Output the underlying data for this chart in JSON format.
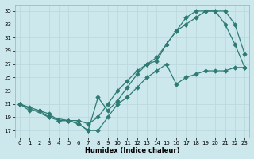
{
  "xlabel": "Humidex (Indice chaleur)",
  "background_color": "#cce8ec",
  "line_color": "#2e7b74",
  "grid_color": "#b8d8dc",
  "xlim": [
    -0.5,
    23.5
  ],
  "ylim": [
    16,
    36
  ],
  "xticks": [
    0,
    1,
    2,
    3,
    4,
    5,
    6,
    7,
    8,
    9,
    10,
    11,
    12,
    13,
    14,
    15,
    16,
    17,
    18,
    19,
    20,
    21,
    22,
    23
  ],
  "yticks": [
    17,
    19,
    21,
    23,
    25,
    27,
    29,
    31,
    33,
    35
  ],
  "series1_x": [
    0,
    1,
    2,
    3,
    4,
    5,
    6,
    7,
    8,
    9,
    10,
    11,
    12,
    13,
    14,
    15,
    16,
    17,
    18,
    19,
    20,
    21,
    22,
    23
  ],
  "series1_y": [
    21,
    20,
    20,
    19,
    18.5,
    18.5,
    18,
    17,
    17,
    19,
    21,
    22,
    23.5,
    25,
    26,
    27,
    24,
    25,
    25.5,
    26,
    26,
    26,
    26.5,
    26.5
  ],
  "series2_x": [
    0,
    1,
    2,
    3,
    4,
    5,
    6,
    7,
    8,
    9,
    10,
    11,
    12,
    13,
    14,
    15,
    16,
    17,
    18,
    19,
    20,
    21,
    22,
    23
  ],
  "series2_y": [
    21,
    20.5,
    20,
    19.5,
    18.5,
    18.5,
    18.5,
    18,
    19,
    21,
    23,
    24.5,
    26,
    27,
    28,
    30,
    32,
    33,
    34,
    35,
    35,
    35,
    33,
    28.5
  ],
  "series3_x": [
    0,
    3,
    5,
    6,
    7,
    8,
    9,
    10,
    11,
    12,
    13,
    14,
    15,
    16,
    17,
    18,
    19,
    20,
    21,
    22,
    23
  ],
  "series3_y": [
    21,
    19,
    18.5,
    18,
    17,
    22,
    20,
    21.5,
    23.5,
    25.5,
    27,
    27.5,
    30,
    32,
    34,
    35,
    35,
    35,
    33,
    30,
    26.5
  ]
}
